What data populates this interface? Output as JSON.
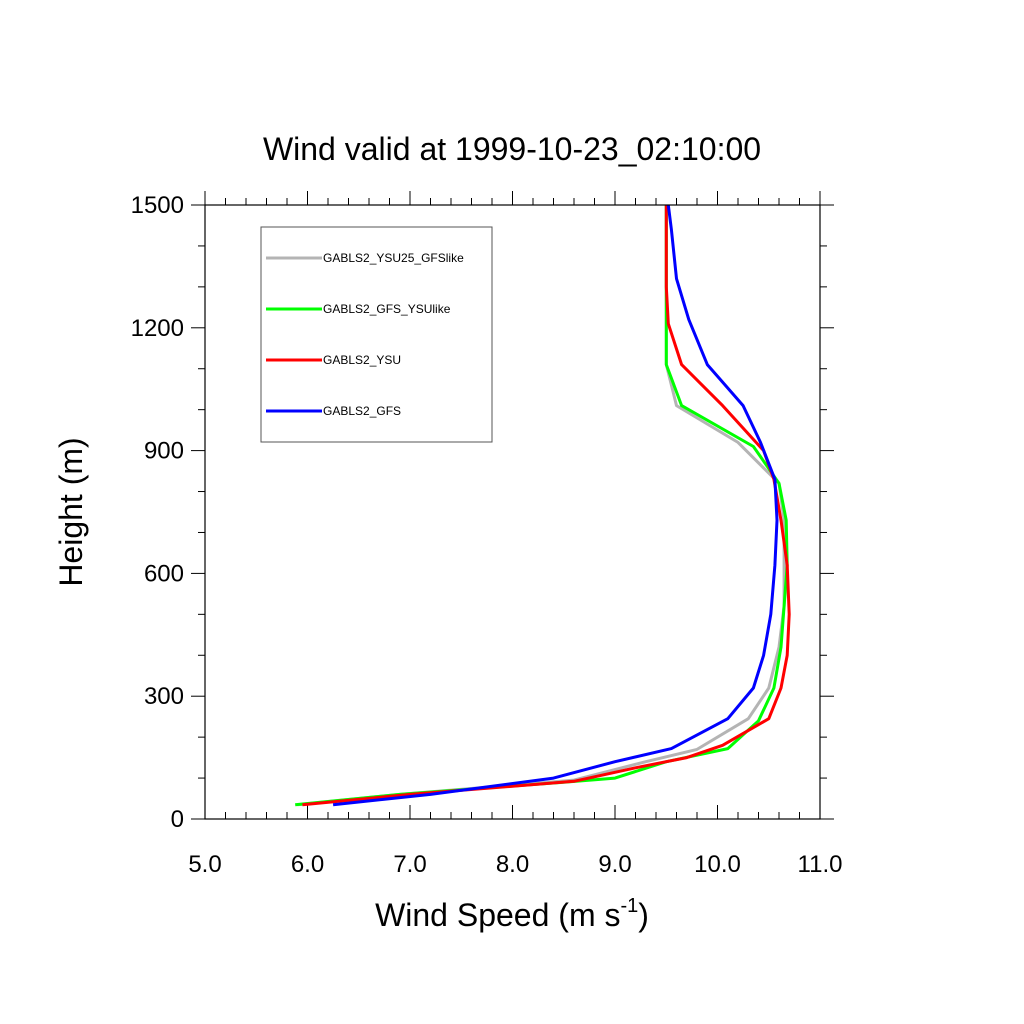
{
  "chart_data": {
    "type": "line",
    "title": "Wind valid at 1999-10-23_02:10:00",
    "xlabel": "Wind Speed (m s",
    "xlabel_superscript": "-1",
    "xlabel_suffix": ")",
    "ylabel": "Height (m)",
    "xlim": [
      5.0,
      11.0
    ],
    "ylim": [
      0,
      1500
    ],
    "xticks": [
      "5.0",
      "6.0",
      "7.0",
      "8.0",
      "9.0",
      "10.0",
      "11.0"
    ],
    "yticks": [
      "0",
      "300",
      "600",
      "900",
      "1200",
      "1500"
    ],
    "grid": false,
    "legend_position": "top-left",
    "series": [
      {
        "name": "GABLS2_YSU25_GFSlike",
        "color": "#b4b4b4",
        "points": [
          [
            5.9,
            35
          ],
          [
            6.9,
            60
          ],
          [
            8.6,
            95
          ],
          [
            9.3,
            140
          ],
          [
            9.8,
            170
          ],
          [
            10.3,
            245
          ],
          [
            10.5,
            320
          ],
          [
            10.6,
            420
          ],
          [
            10.65,
            520
          ],
          [
            10.65,
            620
          ],
          [
            10.65,
            730
          ],
          [
            10.6,
            820
          ],
          [
            10.2,
            920
          ],
          [
            9.6,
            1010
          ],
          [
            9.5,
            1110
          ],
          [
            9.5,
            1210
          ],
          [
            9.5,
            1500
          ]
        ]
      },
      {
        "name": "GABLS2_GFS_YSUlike",
        "color": "#00ff00",
        "points": [
          [
            5.88,
            35
          ],
          [
            6.9,
            60
          ],
          [
            8.5,
            90
          ],
          [
            9.0,
            100
          ],
          [
            9.5,
            140
          ],
          [
            10.1,
            172
          ],
          [
            10.4,
            240
          ],
          [
            10.55,
            320
          ],
          [
            10.62,
            420
          ],
          [
            10.65,
            520
          ],
          [
            10.68,
            620
          ],
          [
            10.67,
            730
          ],
          [
            10.6,
            820
          ],
          [
            10.35,
            910
          ],
          [
            9.65,
            1010
          ],
          [
            9.5,
            1110
          ],
          [
            9.5,
            1210
          ],
          [
            9.5,
            1500
          ]
        ]
      },
      {
        "name": "GABLS2_YSU",
        "color": "#ff0000",
        "points": [
          [
            5.95,
            35
          ],
          [
            7.0,
            60
          ],
          [
            8.6,
            92
          ],
          [
            9.2,
            125
          ],
          [
            9.7,
            150
          ],
          [
            10.05,
            180
          ],
          [
            10.5,
            245
          ],
          [
            10.62,
            320
          ],
          [
            10.68,
            400
          ],
          [
            10.7,
            500
          ],
          [
            10.68,
            620
          ],
          [
            10.62,
            730
          ],
          [
            10.55,
            830
          ],
          [
            10.45,
            900
          ],
          [
            10.05,
            1010
          ],
          [
            9.65,
            1110
          ],
          [
            9.52,
            1210
          ],
          [
            9.5,
            1300
          ],
          [
            9.5,
            1500
          ]
        ]
      },
      {
        "name": "GABLS2_GFS",
        "color": "#0000ff",
        "points": [
          [
            6.25,
            35
          ],
          [
            7.2,
            60
          ],
          [
            8.4,
            100
          ],
          [
            9.0,
            140
          ],
          [
            9.55,
            172
          ],
          [
            10.1,
            245
          ],
          [
            10.35,
            320
          ],
          [
            10.45,
            400
          ],
          [
            10.52,
            500
          ],
          [
            10.56,
            620
          ],
          [
            10.58,
            730
          ],
          [
            10.56,
            830
          ],
          [
            10.42,
            920
          ],
          [
            10.25,
            1010
          ],
          [
            9.9,
            1110
          ],
          [
            9.72,
            1220
          ],
          [
            9.6,
            1320
          ],
          [
            9.55,
            1440
          ],
          [
            9.52,
            1500
          ]
        ]
      }
    ]
  }
}
